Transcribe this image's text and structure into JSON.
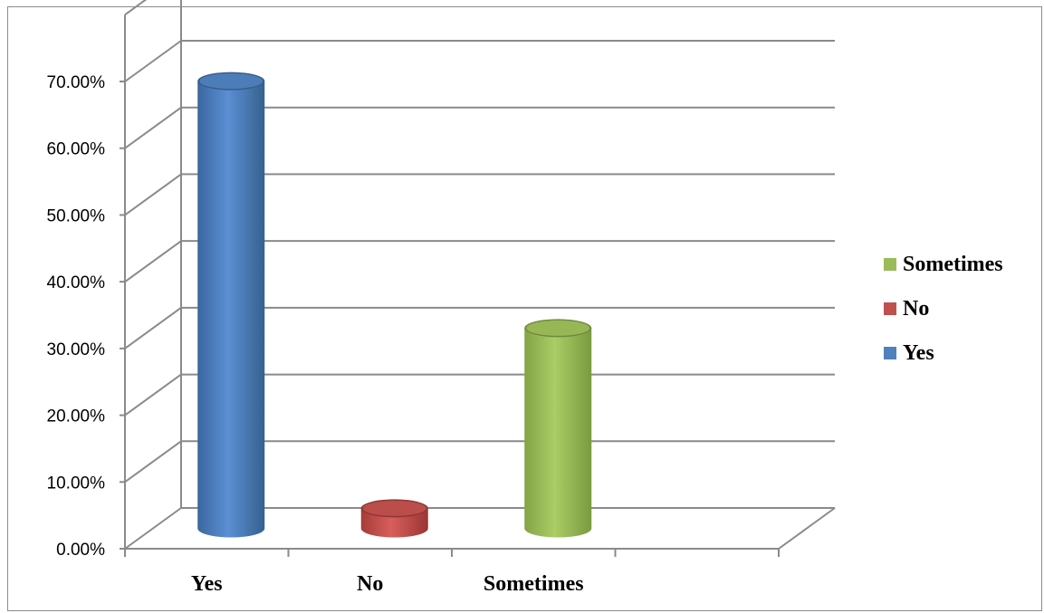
{
  "chart_data": {
    "type": "bar",
    "style": "3d-cylinder",
    "categories": [
      "Yes",
      "No",
      "Sometimes"
    ],
    "values": [
      0.67,
      0.03,
      0.3
    ],
    "colors": [
      "#4f81bd",
      "#c0504d",
      "#9bbb59"
    ],
    "ylim": [
      0,
      0.7
    ],
    "yticks": [
      "0.00%",
      "10.00%",
      "20.00%",
      "30.00%",
      "40.00%",
      "50.00%",
      "60.00%",
      "70.00%"
    ],
    "grid": true,
    "legend": {
      "position": "right",
      "entries": [
        {
          "label": "Sometimes",
          "color": "#9bbb59"
        },
        {
          "label": "No",
          "color": "#c0504d"
        },
        {
          "label": "Yes",
          "color": "#4f81bd"
        }
      ]
    }
  }
}
